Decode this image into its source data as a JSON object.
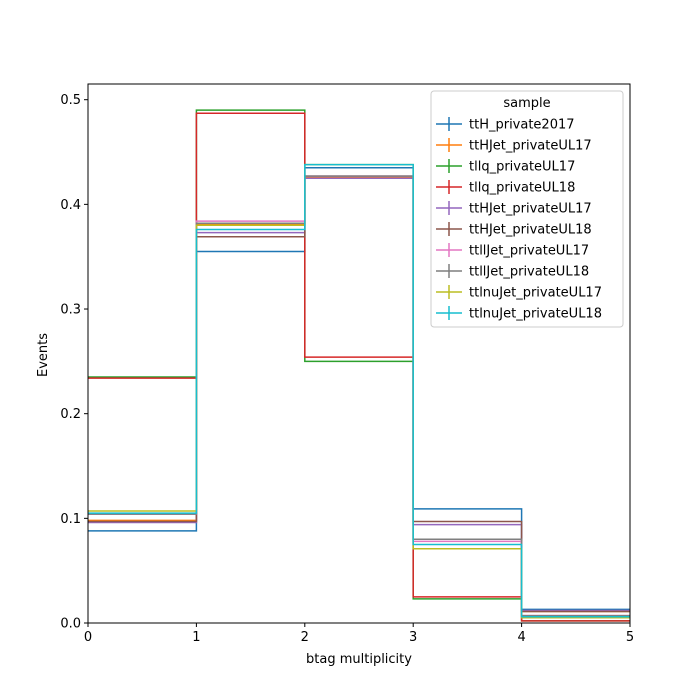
{
  "chart_data": {
    "type": "line",
    "drawstyle": "steps",
    "xlabel": "btag multiplicity",
    "ylabel": "Events",
    "xlim": [
      0,
      5
    ],
    "ylim": [
      0,
      0.515
    ],
    "xticks": [
      "0",
      "1",
      "2",
      "3",
      "4",
      "5"
    ],
    "yticks": [
      "0.0",
      "0.1",
      "0.2",
      "0.3",
      "0.4",
      "0.5"
    ],
    "bin_edges": [
      0,
      1,
      2,
      3,
      4,
      5
    ],
    "grid": false,
    "legend": {
      "title": "sample",
      "position": "top-right"
    },
    "series": [
      {
        "name": "ttH_private2017",
        "color": "#1f77b4",
        "values": [
          0.088,
          0.355,
          0.435,
          0.109,
          0.013
        ]
      },
      {
        "name": "ttHJet_privateUL17",
        "color": "#ff7f0e",
        "values": [
          0.098,
          0.381,
          0.426,
          0.08,
          0.011
        ]
      },
      {
        "name": "tllq_privateUL17",
        "color": "#2ca02c",
        "values": [
          0.235,
          0.49,
          0.25,
          0.023,
          0.002
        ]
      },
      {
        "name": "tllq_privateUL18",
        "color": "#d62728",
        "values": [
          0.234,
          0.487,
          0.254,
          0.025,
          0.002
        ]
      },
      {
        "name": "ttHJet_privateUL17",
        "color": "#9467bd",
        "values": [
          0.096,
          0.373,
          0.425,
          0.094,
          0.012
        ]
      },
      {
        "name": "ttHJet_privateUL18",
        "color": "#8c564b",
        "values": [
          0.097,
          0.369,
          0.427,
          0.097,
          0.011
        ]
      },
      {
        "name": "ttllJet_privateUL17",
        "color": "#e377c2",
        "values": [
          0.104,
          0.384,
          0.427,
          0.078,
          0.007
        ]
      },
      {
        "name": "ttllJet_privateUL18",
        "color": "#7f7f7f",
        "values": [
          0.104,
          0.382,
          0.427,
          0.08,
          0.007
        ]
      },
      {
        "name": "ttlnuJet_privateUL17",
        "color": "#bcbd22",
        "values": [
          0.107,
          0.38,
          0.438,
          0.071,
          0.005
        ]
      },
      {
        "name": "ttlnuJet_privateUL18",
        "color": "#17becf",
        "values": [
          0.105,
          0.376,
          0.438,
          0.075,
          0.006
        ]
      }
    ]
  }
}
